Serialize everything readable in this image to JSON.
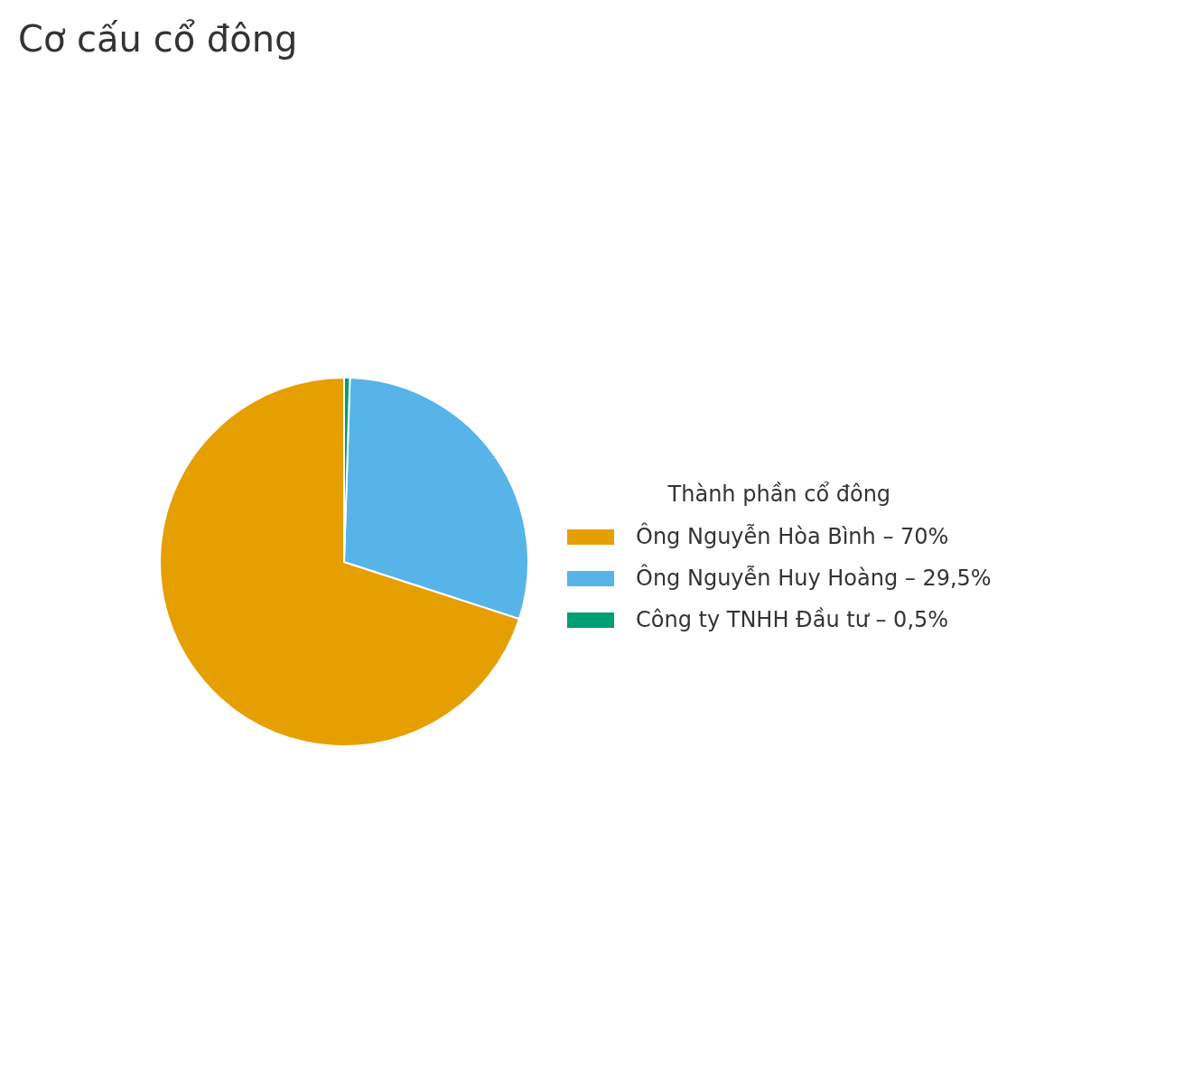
{
  "chart_data": {
    "type": "pie",
    "title": "Cơ cấu cổ đông",
    "legend_title": "Thành phần cổ đông",
    "categories": [
      "Ông Nguyễn Hòa Bình",
      "Ông Nguyễn Huy Hoàng",
      "Công ty TNHH Đầu tư"
    ],
    "values": [
      70,
      29.5,
      0.5
    ],
    "value_labels": [
      "70%",
      "29,5%",
      "0,5%"
    ],
    "colors": [
      "#e69f00",
      "#56b4e9",
      "#009e73"
    ],
    "legend": "right"
  }
}
